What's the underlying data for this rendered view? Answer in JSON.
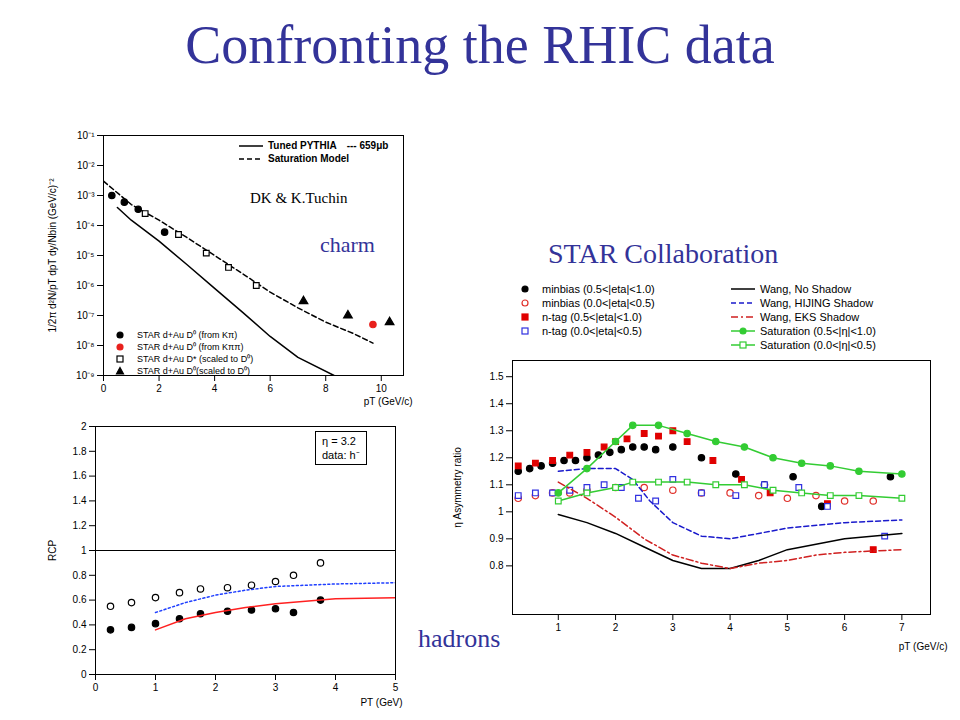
{
  "slide_title": "Confronting the RHIC data",
  "chart_data": [
    {
      "type": "line",
      "x_label": "pT (GeV/c)",
      "y_label": "1/2π d²N/pT dpT dy/Nbin (GeV/c)⁻²",
      "log": "y",
      "xlim": [
        0,
        10.8
      ],
      "xticks": [
        0,
        2,
        4,
        6,
        8,
        10
      ],
      "ylim": [
        1e-09,
        0.1
      ],
      "yticks": [
        {
          "value": 1e-09,
          "label": "10⁻⁹"
        },
        {
          "value": 1e-08,
          "label": "10⁻⁸"
        },
        {
          "value": 1e-07,
          "label": "10⁻⁷"
        },
        {
          "value": 1e-06,
          "label": "10⁻⁶"
        },
        {
          "value": 1e-05,
          "label": "10⁻⁵"
        },
        {
          "value": 0.0001,
          "label": "10⁻⁴"
        },
        {
          "value": 0.001,
          "label": "10⁻³"
        },
        {
          "value": 0.01,
          "label": "10⁻²"
        },
        {
          "value": 0.1,
          "label": "10⁻¹"
        }
      ],
      "legend": "top-right",
      "legend_note": "--- 659μb",
      "credit": "DK & K.Tuchin",
      "subject": "charm",
      "series": [
        {
          "name": "Tuned PYTHIA",
          "type": "line",
          "line_style": "solid",
          "color": "#000000",
          "x": [
            0.5,
            1,
            2,
            3,
            4,
            5,
            6,
            7,
            8.3
          ],
          "values": [
            0.0004,
            0.00015,
            3e-05,
            5e-06,
            8e-07,
            1.3e-07,
            2e-08,
            4e-09,
            1e-09
          ]
        },
        {
          "name": "Saturation Model",
          "type": "line",
          "line_style": "dashed",
          "color": "#000000",
          "x": [
            0,
            1,
            2,
            3,
            4,
            5,
            6,
            7,
            8,
            9,
            9.7
          ],
          "values": [
            0.003,
            0.0005,
            0.00015,
            4e-05,
            1e-05,
            2.5e-06,
            6e-07,
            1.8e-07,
            6e-08,
            2.5e-08,
            1.2e-08
          ]
        },
        {
          "name": "STAR d+Au D⁰ (from Kπ)",
          "type": "scatter",
          "marker": "circle",
          "color": "#000000",
          "x": [
            0.3,
            0.75,
            1.25,
            2.2
          ],
          "values": [
            0.001,
            0.0006,
            0.00035,
            6e-05
          ]
        },
        {
          "name": "STAR d+Au D⁰ (from Kππ)",
          "type": "scatter",
          "marker": "circle",
          "color": "#e8201c",
          "x": [
            9.7
          ],
          "values": [
            5e-08
          ]
        },
        {
          "name": "STAR d+Au D* (scaled to D⁰)",
          "type": "scatter",
          "marker": "square-open",
          "color": "#000000",
          "x": [
            1.5,
            2.7,
            3.7,
            4.5,
            5.5
          ],
          "values": [
            0.00025,
            5e-05,
            1.2e-05,
            4e-06,
            1e-06
          ]
        },
        {
          "name": "STAR d+Au D⁰(scaled to D⁰)",
          "type": "scatter",
          "marker": "triangle",
          "color": "#000000",
          "x": [
            7.2,
            8.8,
            10.3
          ],
          "values": [
            3e-07,
            1e-07,
            6e-08
          ]
        }
      ]
    },
    {
      "type": "line",
      "x_label": "PT (GeV)",
      "y_label": "RCP",
      "xlim": [
        0,
        5
      ],
      "xticks": [
        0,
        1,
        2,
        3,
        4,
        5
      ],
      "ylim": [
        0,
        2
      ],
      "yticks": [
        0,
        0.2,
        0.4,
        0.6,
        0.8,
        1,
        1.2,
        1.4,
        1.6,
        1.8,
        2
      ],
      "reference": 1,
      "annotations": [
        "η = 3.2",
        "data: h⁻"
      ],
      "subject": "hadrons",
      "series": [
        {
          "type": "scatter",
          "marker": "circle-open",
          "color": "#000000",
          "x": [
            0.25,
            0.6,
            1.0,
            1.4,
            1.75,
            2.2,
            2.6,
            3.0,
            3.3,
            3.75
          ],
          "values": [
            0.55,
            0.58,
            0.62,
            0.66,
            0.69,
            0.7,
            0.72,
            0.75,
            0.8,
            0.9
          ]
        },
        {
          "type": "scatter",
          "marker": "circle",
          "color": "#000000",
          "x": [
            0.25,
            0.6,
            1.0,
            1.4,
            1.75,
            2.2,
            2.6,
            3.0,
            3.3,
            3.75
          ],
          "values": [
            0.36,
            0.38,
            0.41,
            0.45,
            0.49,
            0.51,
            0.52,
            0.53,
            0.5,
            0.6
          ]
        },
        {
          "type": "line",
          "line_style": "dotted",
          "color": "#1f3fff",
          "x": [
            1,
            1.5,
            2,
            2.5,
            3,
            3.5,
            4,
            5
          ],
          "values": [
            0.5,
            0.58,
            0.64,
            0.68,
            0.71,
            0.72,
            0.73,
            0.74
          ]
        },
        {
          "type": "line",
          "line_style": "solid",
          "color": "#ff2020",
          "x": [
            1,
            1.5,
            2,
            2.5,
            3,
            3.5,
            4,
            5
          ],
          "values": [
            0.36,
            0.45,
            0.5,
            0.54,
            0.57,
            0.59,
            0.61,
            0.62
          ]
        }
      ]
    },
    {
      "type": "line",
      "x_label": "pT (GeV/c)",
      "y_label": "η Asymmetry ratio",
      "xlim": [
        0.2,
        7.5
      ],
      "xticks": [
        1,
        2,
        3,
        4,
        5,
        6,
        7
      ],
      "ylim": [
        0.62,
        1.56
      ],
      "yticks": [
        0.8,
        0.9,
        1,
        1.1,
        1.2,
        1.3,
        1.4,
        1.5
      ],
      "legend": "top",
      "credit": "STAR Collaboration",
      "series": [
        {
          "name": "minbias (0.5<|eta|<1.0)",
          "type": "scatter",
          "marker": "circle",
          "color": "#000000",
          "x": [
            0.3,
            0.5,
            0.7,
            0.9,
            1.1,
            1.3,
            1.5,
            1.7,
            1.9,
            2.1,
            2.3,
            2.5,
            2.7,
            3.0,
            3.5,
            4.1,
            4.6,
            5.1,
            5.6,
            6.8
          ],
          "values": [
            1.15,
            1.16,
            1.17,
            1.18,
            1.19,
            1.19,
            1.2,
            1.21,
            1.22,
            1.23,
            1.24,
            1.24,
            1.23,
            1.24,
            1.2,
            1.14,
            1.1,
            1.13,
            1.02,
            1.13
          ]
        },
        {
          "name": "minbias (0.0<|eta|<0.5)",
          "type": "scatter",
          "marker": "circle-open",
          "color": "#e0302a",
          "x": [
            0.3,
            0.6,
            0.9,
            1.2,
            1.5,
            2.0,
            2.5,
            3.0,
            3.5,
            4.0,
            4.5,
            5.0,
            5.5,
            6.0,
            6.5
          ],
          "values": [
            1.05,
            1.06,
            1.07,
            1.07,
            1.08,
            1.09,
            1.09,
            1.08,
            1.07,
            1.07,
            1.06,
            1.05,
            1.06,
            1.04,
            1.04
          ]
        },
        {
          "name": "n-tag (0.5<|eta|<1.0)",
          "type": "scatter",
          "marker": "square",
          "color": "#e00000",
          "x": [
            0.3,
            0.6,
            0.9,
            1.2,
            1.5,
            1.8,
            2.0,
            2.2,
            2.5,
            2.75,
            3.0,
            3.25,
            3.7,
            4.2,
            4.7,
            5.7,
            6.5
          ],
          "values": [
            1.17,
            1.18,
            1.19,
            1.21,
            1.22,
            1.24,
            1.26,
            1.27,
            1.29,
            1.28,
            1.3,
            1.26,
            1.19,
            1.12,
            1.07,
            1.03,
            0.86
          ]
        },
        {
          "name": "n-tag (0.0<|eta|<0.5)",
          "type": "scatter",
          "marker": "square-open",
          "color": "#3030e0",
          "x": [
            0.3,
            0.6,
            0.9,
            1.2,
            1.5,
            1.8,
            2.1,
            2.4,
            2.7,
            3.0,
            3.5,
            4.1,
            4.6,
            5.2,
            5.7,
            6.7
          ],
          "values": [
            1.06,
            1.07,
            1.07,
            1.08,
            1.09,
            1.1,
            1.09,
            1.05,
            1.04,
            1.12,
            1.07,
            1.06,
            1.1,
            1.09,
            1.02,
            0.91
          ]
        },
        {
          "name": "Wang, No Shadow",
          "type": "line",
          "line_style": "solid",
          "color": "#000000",
          "x": [
            1.0,
            1.5,
            2.0,
            2.5,
            3.0,
            3.5,
            4.0,
            4.5,
            5.0,
            5.5,
            6.0,
            7.0
          ],
          "values": [
            0.99,
            0.96,
            0.92,
            0.87,
            0.82,
            0.79,
            0.79,
            0.82,
            0.86,
            0.88,
            0.9,
            0.92
          ]
        },
        {
          "name": "Wang, HIJING Shadow",
          "type": "line",
          "line_style": "dashed",
          "color": "#1a1acc",
          "x": [
            1.0,
            1.5,
            2.0,
            2.3,
            2.6,
            3.0,
            3.5,
            4.0,
            4.5,
            5.0,
            6.0,
            7.0
          ],
          "values": [
            1.15,
            1.16,
            1.16,
            1.12,
            1.04,
            0.96,
            0.91,
            0.9,
            0.92,
            0.94,
            0.96,
            0.97
          ]
        },
        {
          "name": "Wang, EKS Shadow",
          "type": "line",
          "line_style": "dashdot",
          "color": "#d02020",
          "x": [
            1.0,
            1.5,
            2.0,
            2.5,
            3.0,
            3.5,
            4.0,
            4.5,
            5.0,
            5.5,
            6.0,
            7.0
          ],
          "values": [
            1.11,
            1.05,
            0.98,
            0.9,
            0.84,
            0.81,
            0.79,
            0.81,
            0.82,
            0.84,
            0.85,
            0.86
          ]
        },
        {
          "name": "Saturation (0.5<|η|<1.0)",
          "type": "line",
          "line_style": "solid",
          "marker": "circle",
          "color": "#33cc33",
          "x": [
            1.0,
            1.5,
            2.0,
            2.3,
            2.75,
            3.25,
            3.75,
            4.25,
            4.75,
            5.25,
            5.75,
            6.25,
            7.0
          ],
          "values": [
            1.07,
            1.16,
            1.26,
            1.32,
            1.32,
            1.29,
            1.26,
            1.24,
            1.2,
            1.18,
            1.17,
            1.15,
            1.14
          ]
        },
        {
          "name": "Saturation (0.0<|η|<0.5)",
          "type": "line",
          "line_style": "solid",
          "marker": "square-open",
          "color": "#33cc33",
          "x": [
            1.0,
            1.5,
            2.0,
            2.3,
            2.75,
            3.25,
            3.75,
            4.25,
            4.75,
            5.25,
            5.75,
            6.25,
            7.0
          ],
          "values": [
            1.04,
            1.07,
            1.09,
            1.11,
            1.11,
            1.11,
            1.1,
            1.1,
            1.08,
            1.07,
            1.06,
            1.06,
            1.05
          ]
        }
      ]
    }
  ]
}
